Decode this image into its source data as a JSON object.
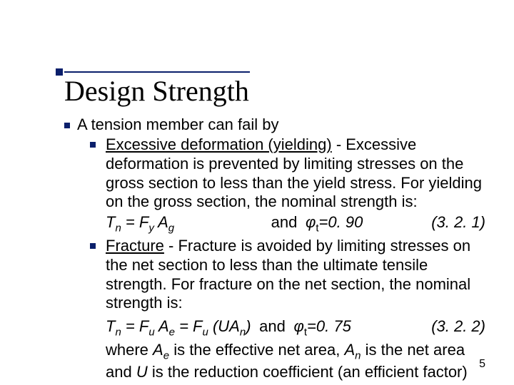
{
  "heading": "Design Strength",
  "intro": "A tension member can fail by",
  "items": [
    {
      "lead": "Excessive deformation (yielding)",
      "body": " - Excessive deformation is prevented by limiting stresses on the gross section to less than the yield stress.  For yielding on the gross section, the nominal strength is:",
      "eq": {
        "T": "T",
        "Tn": "n",
        "eq1": " = F",
        "Fy": "y",
        "A": " A",
        "Ag": "g",
        "and": "and",
        "phi": "φ",
        "phit": "t",
        "phiv": "=0. 90",
        "ref": "(3. 2. 1)"
      }
    },
    {
      "lead": "Fracture",
      "body": " - Fracture is avoided by limiting stresses on the net section to less than the ultimate tensile strength. For fracture on the net section, the nominal strength is:",
      "eq": {
        "T": "T",
        "Tn": "n",
        "eq1": " = F",
        "Fu": "u",
        "A": " A",
        "Ae": "e",
        "eq2": " = F",
        "Fu2": "u",
        "open": " (UA",
        "An": "n",
        "close": ")",
        "and": "and",
        "phi": "φ",
        "phit": "t",
        "phiv": "=0. 75",
        "ref": "(3. 2. 2)"
      },
      "where": {
        "t1": "where ",
        "A": "A",
        "Ae": "e",
        "t2": " is the effective net area, ",
        "A2": "A",
        "An": "n",
        "t3": " is the net area and ",
        "U": "U",
        "t4": " is the reduction coefficient (an efficient factor)"
      }
    }
  ],
  "page": "5"
}
